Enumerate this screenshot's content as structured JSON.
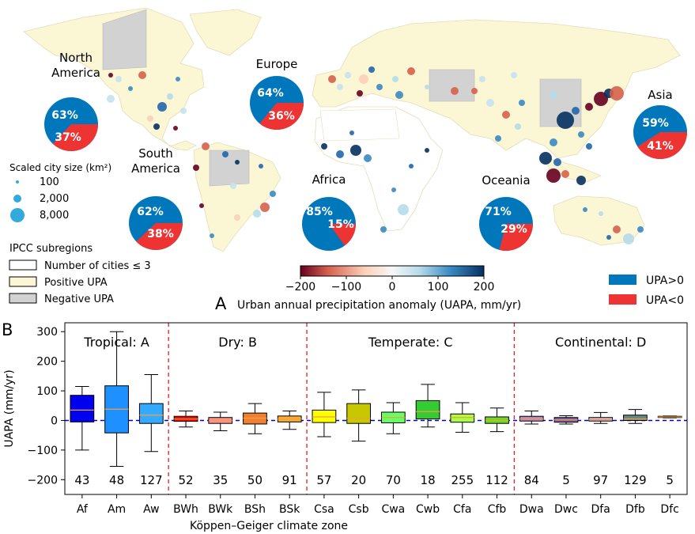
{
  "panel_a": {
    "label": "A",
    "regions": [
      {
        "name_lines": [
          "North",
          "America"
        ],
        "positive": "63%",
        "negative": "37%",
        "pos_frac": 0.63
      },
      {
        "name_lines": [
          "Europe"
        ],
        "positive": "64%",
        "negative": "36%",
        "pos_frac": 0.64
      },
      {
        "name_lines": [
          "South",
          "America"
        ],
        "positive": "62%",
        "negative": "38%",
        "pos_frac": 0.62
      },
      {
        "name_lines": [
          "Africa"
        ],
        "positive": "85%",
        "negative": "15%",
        "pos_frac": 0.85
      },
      {
        "name_lines": [
          "Oceania"
        ],
        "positive": "71%",
        "negative": "29%",
        "pos_frac": 0.71
      },
      {
        "name_lines": [
          "Asia"
        ],
        "positive": "59%",
        "negative": "41%",
        "pos_frac": 0.59
      }
    ],
    "size_legend": {
      "title": "Scaled city size (km²)",
      "items": [
        "100",
        "2,000",
        "8,000"
      ]
    },
    "ipcc_legend": {
      "title": "IPCC subregions",
      "items": [
        {
          "label": "Number of cities ≤ 3",
          "color": "#ffffff"
        },
        {
          "label": "Positive UPA",
          "color": "#fbf6d3"
        },
        {
          "label": "Negative UPA",
          "color": "#d2d2d2"
        }
      ]
    },
    "colorbar": {
      "ticks": [
        "−200",
        "−100",
        "0",
        "100",
        "200"
      ],
      "label": "Urban annual precipitation anomaly (UAPA, mm/yr)"
    },
    "pie_legend": [
      {
        "label": "UPA>0",
        "color": "#0077bb"
      },
      {
        "label": "UPA<0",
        "color": "#ee3333"
      }
    ],
    "colors": {
      "positive": "#0077bb",
      "negative": "#ee3333",
      "land": "#fbf6d3",
      "grey": "#d2d2d2"
    }
  },
  "chart_data": {
    "type": "box",
    "panel_label": "B",
    "ylabel": "UAPA (mm/yr)",
    "xlabel": "Köppen–Geiger climate zone",
    "ylim": [
      -250,
      330
    ],
    "yticks": [
      "300",
      "200",
      "100",
      "0",
      "−100",
      "−200"
    ],
    "ytick_values": [
      300,
      200,
      100,
      0,
      -100,
      -200
    ],
    "reference_line": 0,
    "groups": [
      {
        "title": "Tropical: A",
        "start": 0,
        "end": 2
      },
      {
        "title": "Dry: B",
        "start": 3,
        "end": 6
      },
      {
        "title": "Temperate: C",
        "start": 7,
        "end": 12
      },
      {
        "title": "Continental: D",
        "start": 13,
        "end": 17
      }
    ],
    "categories": [
      {
        "zone": "Af",
        "n": "43",
        "color": "#0000ee",
        "whislo": -100,
        "q1": -5,
        "median": 35,
        "q3": 85,
        "whishi": 115
      },
      {
        "zone": "Am",
        "n": "48",
        "color": "#1e90ff",
        "whislo": -155,
        "q1": -42,
        "median": 38,
        "q3": 117,
        "whishi": 300
      },
      {
        "zone": "Aw",
        "n": "127",
        "color": "#33aaff",
        "whislo": -105,
        "q1": -10,
        "median": 18,
        "q3": 57,
        "whishi": 155
      },
      {
        "zone": "BWh",
        "n": "52",
        "color": "#ff0000",
        "whislo": -22,
        "q1": -3,
        "median": 5,
        "q3": 14,
        "whishi": 32
      },
      {
        "zone": "BWk",
        "n": "35",
        "color": "#ff9090",
        "whislo": -35,
        "q1": -10,
        "median": 0,
        "q3": 10,
        "whishi": 28
      },
      {
        "zone": "BSh",
        "n": "50",
        "color": "#f08030",
        "whislo": -45,
        "q1": -12,
        "median": 8,
        "q3": 25,
        "whishi": 57
      },
      {
        "zone": "BSk",
        "n": "91",
        "color": "#ffaa33",
        "whislo": -30,
        "q1": -5,
        "median": 5,
        "q3": 15,
        "whishi": 32
      },
      {
        "zone": "Csa",
        "n": "57",
        "color": "#ffff00",
        "whislo": -55,
        "q1": -7,
        "median": 12,
        "q3": 35,
        "whishi": 95
      },
      {
        "zone": "Csb",
        "n": "20",
        "color": "#c8c800",
        "whislo": -70,
        "q1": -10,
        "median": 8,
        "q3": 57,
        "whishi": 103
      },
      {
        "zone": "Cwa",
        "n": "70",
        "color": "#66ff66",
        "whislo": -45,
        "q1": -8,
        "median": 10,
        "q3": 28,
        "whishi": 60
      },
      {
        "zone": "Cwb",
        "n": "18",
        "color": "#33cc33",
        "whislo": -22,
        "q1": 5,
        "median": 30,
        "q3": 67,
        "whishi": 122
      },
      {
        "zone": "Cfa",
        "n": "255",
        "color": "#aaff44",
        "whislo": -40,
        "q1": -6,
        "median": 10,
        "q3": 22,
        "whishi": 60
      },
      {
        "zone": "Cfb",
        "n": "112",
        "color": "#66dd22",
        "whislo": -38,
        "q1": -10,
        "median": 0,
        "q3": 12,
        "whishi": 42
      },
      {
        "zone": "Dwa",
        "n": "84",
        "color": "#bb88cc",
        "whislo": -12,
        "q1": -2,
        "median": 5,
        "q3": 14,
        "whishi": 32
      },
      {
        "zone": "Dwc",
        "n": "5",
        "color": "#7a5ca8",
        "whislo": -12,
        "q1": -6,
        "median": 2,
        "q3": 10,
        "whishi": 16
      },
      {
        "zone": "Dfa",
        "n": "97",
        "color": "#ddb8dd",
        "whislo": -10,
        "q1": -2,
        "median": 3,
        "q3": 10,
        "whishi": 27
      },
      {
        "zone": "Dfb",
        "n": "129",
        "color": "#668888",
        "whislo": -10,
        "q1": 0,
        "median": 5,
        "q3": 18,
        "whishi": 37
      },
      {
        "zone": "Dfc",
        "n": "5",
        "color": "#ffcc44",
        "whislo": 9,
        "q1": 10,
        "median": 12,
        "q3": 14,
        "whishi": 15
      }
    ]
  }
}
